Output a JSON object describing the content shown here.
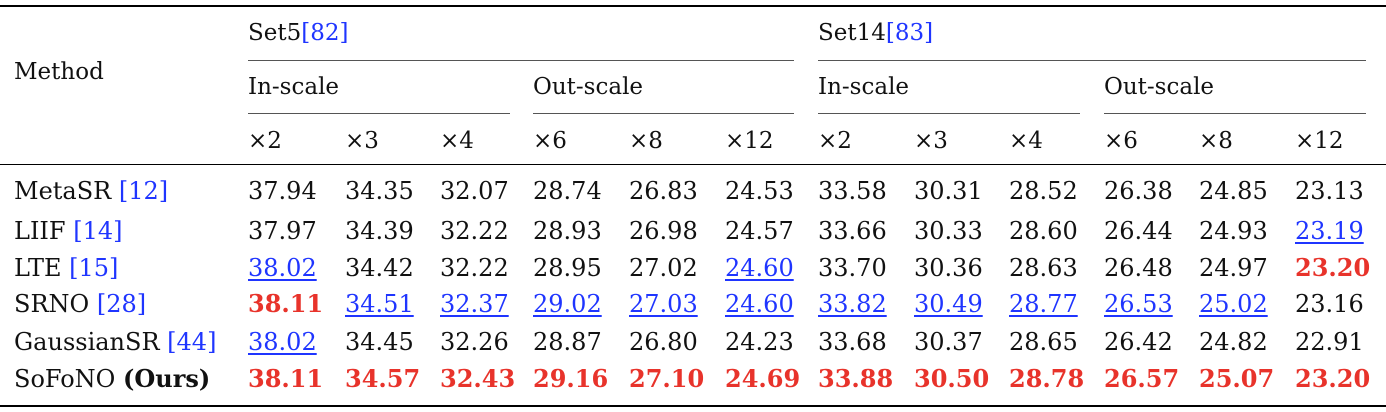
{
  "header": {
    "method_label": "Method",
    "datasets": [
      {
        "name": "Set5",
        "ref": "[82]"
      },
      {
        "name": "Set14",
        "ref": "[83]"
      }
    ],
    "groups": [
      "In-scale",
      "Out-scale",
      "In-scale",
      "Out-scale"
    ],
    "scales": [
      "×2",
      "×3",
      "×4",
      "×6",
      "×8",
      "×12",
      "×2",
      "×3",
      "×4",
      "×6",
      "×8",
      "×12"
    ]
  },
  "rows": [
    {
      "name": "MetaSR",
      "ref": "[12]",
      "suffix": "",
      "values": [
        "37.94",
        "34.35",
        "32.07",
        "28.74",
        "26.83",
        "24.53",
        "33.58",
        "30.31",
        "28.52",
        "26.38",
        "24.85",
        "23.13"
      ],
      "marks": [
        "",
        "",
        "",
        "",
        "",
        "",
        "",
        "",
        "",
        "",
        "",
        ""
      ]
    },
    {
      "name": "LIIF",
      "ref": "[14]",
      "suffix": "",
      "values": [
        "37.97",
        "34.39",
        "32.22",
        "28.93",
        "26.98",
        "24.57",
        "33.66",
        "30.33",
        "28.60",
        "26.44",
        "24.93",
        "23.19"
      ],
      "marks": [
        "",
        "",
        "",
        "",
        "",
        "",
        "",
        "",
        "",
        "",
        "",
        "second"
      ]
    },
    {
      "name": "LTE",
      "ref": "[15]",
      "suffix": "",
      "values": [
        "38.02",
        "34.42",
        "32.22",
        "28.95",
        "27.02",
        "24.60",
        "33.70",
        "30.36",
        "28.63",
        "26.48",
        "24.97",
        "23.20"
      ],
      "marks": [
        "second",
        "",
        "",
        "",
        "",
        "second",
        "",
        "",
        "",
        "",
        "",
        "best"
      ]
    },
    {
      "name": "SRNO",
      "ref": "[28]",
      "suffix": "",
      "values": [
        "38.11",
        "34.51",
        "32.37",
        "29.02",
        "27.03",
        "24.60",
        "33.82",
        "30.49",
        "28.77",
        "26.53",
        "25.02",
        "23.16"
      ],
      "marks": [
        "best",
        "second",
        "second",
        "second",
        "second",
        "second",
        "second",
        "second",
        "second",
        "second",
        "second",
        ""
      ]
    },
    {
      "name": "GaussianSR",
      "ref": "[44]",
      "suffix": "",
      "values": [
        "38.02",
        "34.45",
        "32.26",
        "28.87",
        "26.80",
        "24.23",
        "33.68",
        "30.37",
        "28.65",
        "26.42",
        "24.82",
        "22.91"
      ],
      "marks": [
        "second",
        "",
        "",
        "",
        "",
        "",
        "",
        "",
        "",
        "",
        "",
        ""
      ]
    },
    {
      "name": "SoFoNO",
      "ref": "",
      "suffix": "(Ours)",
      "values": [
        "38.11",
        "34.57",
        "32.43",
        "29.16",
        "27.10",
        "24.69",
        "33.88",
        "30.50",
        "28.78",
        "26.57",
        "25.07",
        "23.20"
      ],
      "marks": [
        "best",
        "best",
        "best",
        "best",
        "best",
        "best",
        "best",
        "best",
        "best",
        "best",
        "best",
        "best"
      ]
    }
  ]
}
